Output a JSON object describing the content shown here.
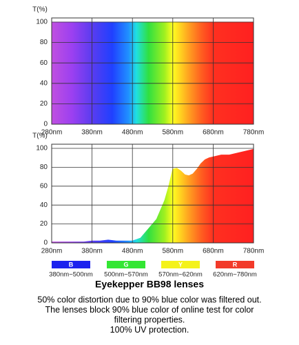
{
  "chart_data": [
    {
      "type": "area",
      "y_label": "T(%)",
      "x": [
        280,
        780
      ],
      "values": [
        100,
        100
      ],
      "xlim": [
        280,
        780
      ],
      "ylim": [
        0,
        100
      ],
      "xticks": [
        {
          "value": 280,
          "label": "280nm"
        },
        {
          "value": 380,
          "label": "380nm"
        },
        {
          "value": 480,
          "label": "480nm"
        },
        {
          "value": 580,
          "label": "580nm"
        },
        {
          "value": 680,
          "label": "680nm"
        },
        {
          "value": 780,
          "label": "780nm"
        }
      ],
      "yticks": [
        0,
        20,
        40,
        60,
        80,
        100
      ],
      "grid": true
    },
    {
      "type": "area",
      "y_label": "T(%)",
      "x": [
        280,
        300,
        320,
        340,
        360,
        380,
        400,
        420,
        440,
        460,
        480,
        500,
        520,
        540,
        560,
        570,
        580,
        590,
        600,
        610,
        620,
        630,
        640,
        650,
        660,
        670,
        680,
        700,
        720,
        740,
        760,
        780
      ],
      "values": [
        1,
        1,
        1,
        1,
        1,
        2,
        2,
        3,
        2,
        2,
        2,
        5,
        15,
        25,
        45,
        60,
        78,
        79,
        76,
        72,
        71,
        73,
        78,
        84,
        88,
        90,
        91,
        93,
        93,
        95,
        97,
        99
      ],
      "xlim": [
        280,
        780
      ],
      "ylim": [
        0,
        100
      ],
      "xticks": [
        {
          "value": 280,
          "label": "280nm"
        },
        {
          "value": 380,
          "label": "380nm"
        },
        {
          "value": 480,
          "label": "480nm"
        },
        {
          "value": 580,
          "label": "580nm"
        },
        {
          "value": 680,
          "label": "680nm"
        },
        {
          "value": 780,
          "label": "780nm"
        }
      ],
      "yticks": [
        0,
        20,
        40,
        60,
        80,
        100
      ],
      "grid": true
    }
  ],
  "legend": [
    {
      "label": "B",
      "color": "#1c22ee",
      "range": "380nm~500nm"
    },
    {
      "label": "G",
      "color": "#33e633",
      "range": "500nm~570nm"
    },
    {
      "label": "Y",
      "color": "#f4f21a",
      "range": "570nm~620nm"
    },
    {
      "label": "R",
      "color": "#f23a2a",
      "range": "620nm~780nm"
    }
  ],
  "title": "Eyekepper BB98 lenses",
  "caption": [
    "50% color distortion due to 90% blue color was filtered out.",
    "The lenses block 90% blue color of online test for color",
    "filtering properties.",
    "100% UV protection."
  ]
}
